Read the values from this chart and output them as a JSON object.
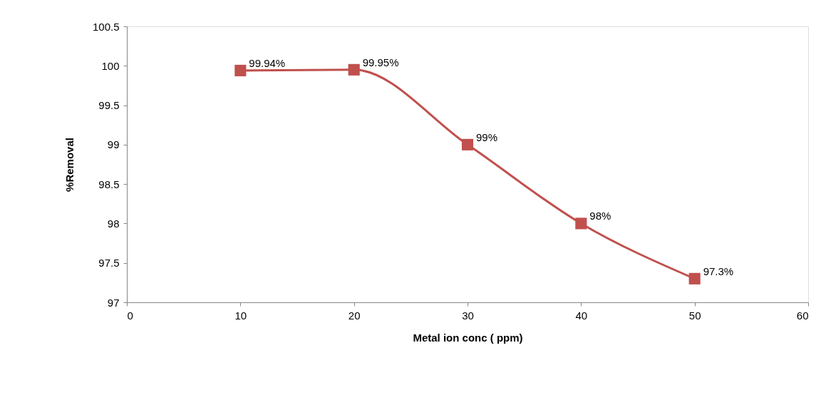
{
  "chart_data": {
    "type": "line",
    "xlabel": "Metal ion conc ( ppm)",
    "ylabel": "%Removal",
    "x": [
      10,
      20,
      30,
      40,
      50
    ],
    "series": [
      {
        "color": "#c0504d",
        "values": [
          99.94,
          99.95,
          99,
          98,
          97.3
        ],
        "value_labels": [
          "99.94%",
          "99.95%",
          "99%",
          "98%",
          "97.3%"
        ]
      }
    ],
    "xlim": [
      0,
      60
    ],
    "xticks": [
      0,
      10,
      20,
      30,
      40,
      50,
      60
    ],
    "ylim": [
      97,
      100.5
    ],
    "yticks": [
      97,
      97.5,
      98,
      98.5,
      99,
      99.5,
      100,
      100.5
    ],
    "grid": false,
    "marker": "square",
    "line_style": "solid"
  }
}
